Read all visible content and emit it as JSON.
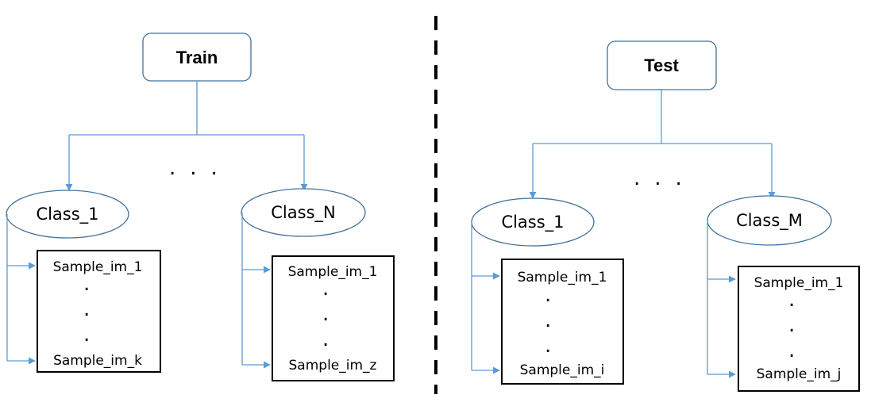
{
  "train": {
    "root_label": "Train",
    "class_first": {
      "label": "Class_1",
      "samples": [
        "Sample_im_1",
        "Sample_im_k"
      ]
    },
    "class_last": {
      "label": "Class_N",
      "samples": [
        "Sample_im_1",
        "Sample_im_z"
      ]
    },
    "ellipsis": "..."
  },
  "test": {
    "root_label": "Test",
    "class_first": {
      "label": "Class_1",
      "samples": [
        "Sample_im_1",
        "Sample_im_i"
      ]
    },
    "class_last": {
      "label": "Class_M",
      "samples": [
        "Sample_im_1",
        "Sample_im_j"
      ]
    },
    "ellipsis": "..."
  },
  "vertical_dot": "."
}
